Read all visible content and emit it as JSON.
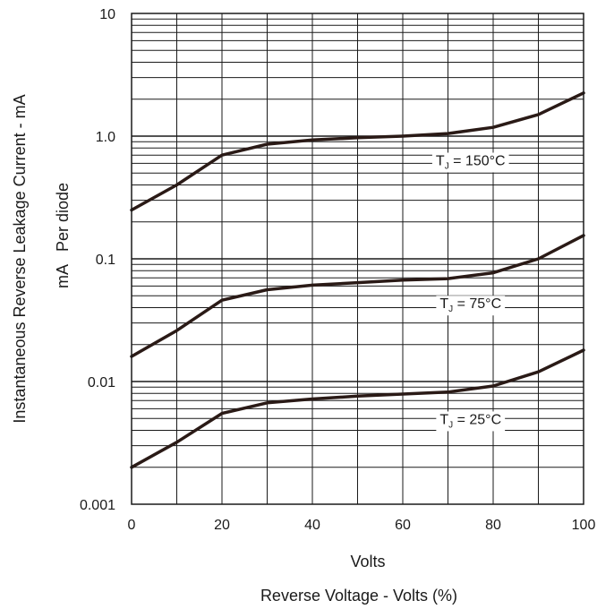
{
  "chart_data": {
    "type": "line",
    "title": "",
    "xlabel": "Volts",
    "xlabel2": "Reverse Voltage - Volts (%)",
    "ylabel": "Instantaneous Reverse Leakage Current - mA",
    "ylabel2": "mA   Per diode",
    "x_scale": "linear",
    "y_scale": "log",
    "xlim": [
      0,
      100
    ],
    "ylim": [
      0.001,
      10
    ],
    "x_ticks": [
      0,
      20,
      40,
      60,
      80,
      100
    ],
    "x_tick_labels": [
      "0",
      "20",
      "40",
      "60",
      "80",
      "100"
    ],
    "y_ticks": [
      0.001,
      0.01,
      0.1,
      1.0,
      10
    ],
    "y_tick_labels": [
      "0.001",
      "0.01",
      "0.1",
      "1.0",
      "10"
    ],
    "grid": true,
    "colors": {
      "curve": "#2a1a16",
      "grid": "#1a1a1a",
      "text": "#1a1a1a"
    },
    "series": [
      {
        "name_main": "T",
        "name_sub": "J",
        "name_rest": " = 150°C",
        "x": [
          0,
          10,
          20,
          30,
          40,
          50,
          60,
          70,
          80,
          90,
          100
        ],
        "y": [
          0.25,
          0.4,
          0.7,
          0.86,
          0.93,
          0.97,
          1.0,
          1.05,
          1.18,
          1.5,
          2.25
        ]
      },
      {
        "name_main": "T",
        "name_sub": "J",
        "name_rest": " = 75°C",
        "x": [
          0,
          10,
          20,
          30,
          40,
          50,
          60,
          70,
          80,
          90,
          100
        ],
        "y": [
          0.016,
          0.026,
          0.046,
          0.056,
          0.061,
          0.064,
          0.067,
          0.069,
          0.077,
          0.1,
          0.155
        ]
      },
      {
        "name_main": "T",
        "name_sub": "J",
        "name_rest": " = 25°C",
        "x": [
          0,
          10,
          20,
          30,
          40,
          50,
          60,
          70,
          80,
          90,
          100
        ],
        "y": [
          0.002,
          0.0032,
          0.0055,
          0.0067,
          0.0072,
          0.0076,
          0.0079,
          0.0082,
          0.0092,
          0.012,
          0.018
        ]
      }
    ]
  }
}
